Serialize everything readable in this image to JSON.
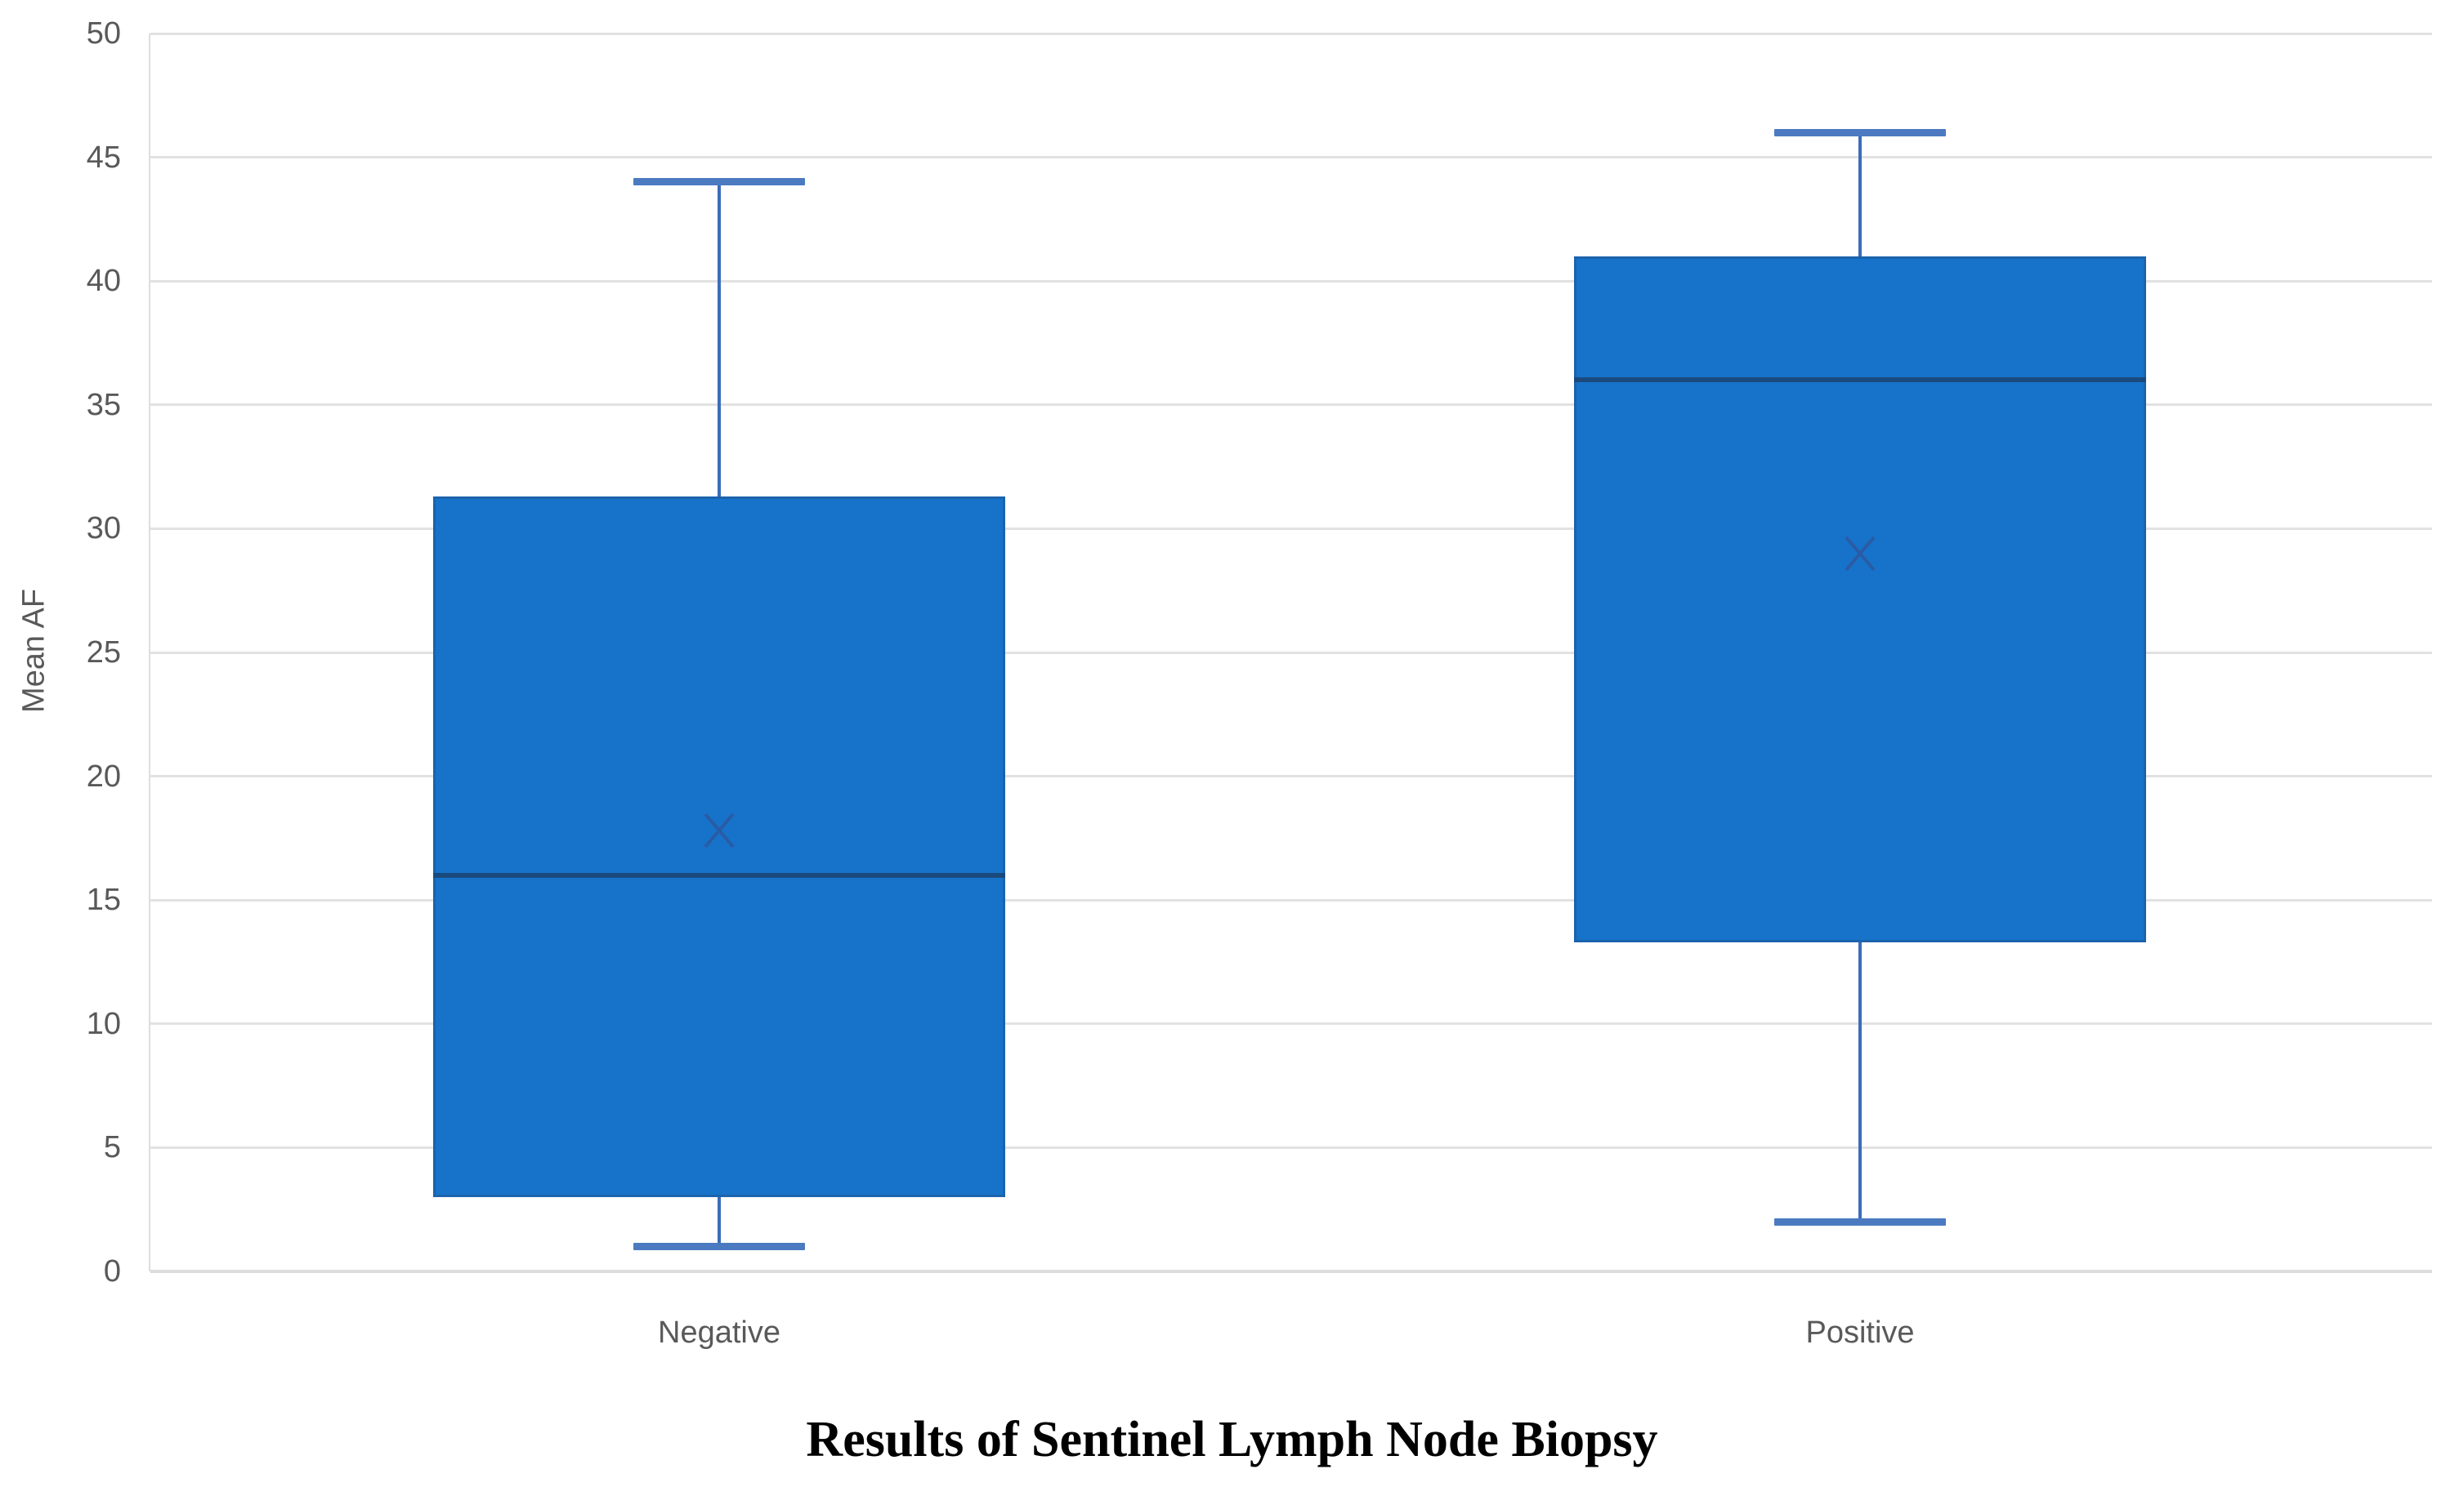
{
  "chart_data": {
    "type": "boxplot",
    "title": "Results of Sentinel Lymph Node Biopsy",
    "xlabel": "",
    "ylabel": "Mean AF",
    "categories": [
      "Negative",
      "Positive"
    ],
    "ylim": [
      0,
      50
    ],
    "yticks": [
      0,
      5,
      10,
      15,
      20,
      25,
      30,
      35,
      40,
      45,
      50
    ],
    "grid": true,
    "legend": "none",
    "series": [
      {
        "category": "Negative",
        "whisker_low": 1,
        "q1": 3,
        "median": 16,
        "mean": 17.8,
        "q3": 31.3,
        "whisker_high": 44
      },
      {
        "category": "Positive",
        "whisker_low": 2,
        "q1": 13.3,
        "median": 36,
        "mean": 29,
        "q3": 41,
        "whisker_high": 46
      }
    ],
    "mean_marker_glyph": "x-cross",
    "colors": {
      "box_fill": "#1773c9",
      "box_border": "#1b63ad",
      "median_line": "#1a4a7d",
      "whisker_line": "#3c6db8",
      "whisker_cap": "#4b7ac1",
      "mean_marker": "#2a5ba5",
      "gridline": "#e2e2e2",
      "axis_line": "#dcdcdc",
      "tick_text": "#595959",
      "title_text": "#000000"
    }
  }
}
